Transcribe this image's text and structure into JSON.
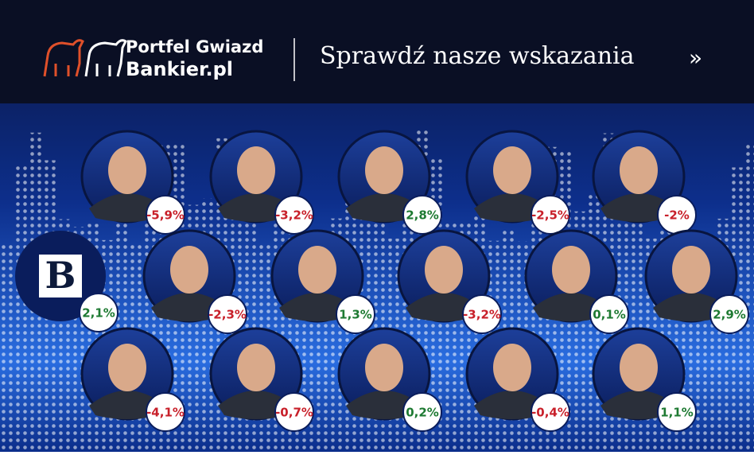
{
  "header": {
    "brand_top": "Portfel Gwiazd",
    "brand_bottom": "Bankier.pl",
    "tagline": "Sprawdź nasze wskazania",
    "arrow": "»"
  },
  "logo_tile": {
    "letter": "B",
    "badge": "2,1%",
    "color": "#1e7a32"
  },
  "experts": [
    {
      "badge": "-5,9%",
      "color": "#c8202a"
    },
    {
      "badge": "-3,2%",
      "color": "#c8202a"
    },
    {
      "badge": "2,8%",
      "color": "#1e7a32"
    },
    {
      "badge": "-2,5%",
      "color": "#c8202a"
    },
    {
      "badge": "-2%",
      "color": "#c8202a"
    },
    {
      "badge": "-2,3%",
      "color": "#c8202a"
    },
    {
      "badge": "1,3%",
      "color": "#1e7a32"
    },
    {
      "badge": "-3,2%",
      "color": "#c8202a"
    },
    {
      "badge": "0,1%",
      "color": "#1e7a32"
    },
    {
      "badge": "2,9%",
      "color": "#1e7a32"
    },
    {
      "badge": "-4,1%",
      "color": "#c8202a"
    },
    {
      "badge": "-0,7%",
      "color": "#c8202a"
    },
    {
      "badge": "0,2%",
      "color": "#1e7a32"
    },
    {
      "badge": "-0,4%",
      "color": "#c8202a"
    },
    {
      "badge": "1,1%",
      "color": "#1e7a32"
    }
  ]
}
